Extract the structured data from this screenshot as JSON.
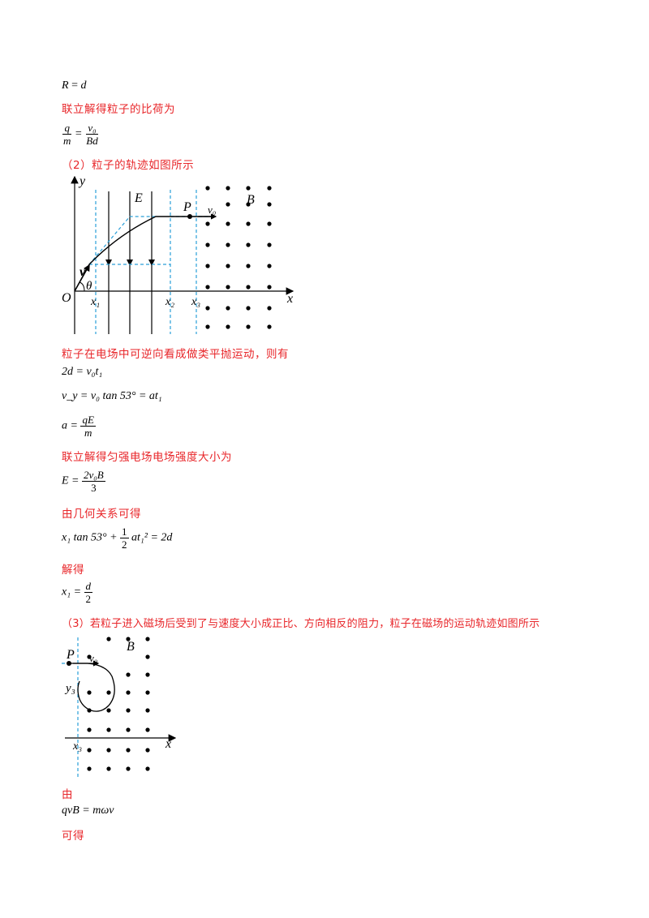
{
  "lines": {
    "eq_R": "R = d",
    "l1": "联立解得粒子的比荷为",
    "eq_qm": {
      "lhs_num": "q",
      "lhs_den": "m",
      "eq": "=",
      "rhs_num": "v₀",
      "rhs_den": "Bd"
    },
    "l2": "（2）粒子的轨迹如图所示",
    "l3": "粒子在电场中可逆向看成做类平抛运动，则有",
    "eq_2d": "2d = v₀t₁",
    "eq_vy": "v_y = v₀ tan 53° = at₁",
    "eq_a": {
      "lhs": "a =",
      "num": "qE",
      "den": "m"
    },
    "l4": "联立解得匀强电场电场强度大小为",
    "eq_E": {
      "lhs": "E =",
      "num": "2v₀B",
      "den": "3"
    },
    "l5": "由几何关系可得",
    "eq_x1": {
      "a": "x₁ tan 53° +",
      "num": "1",
      "den": "2",
      "b": "at₁² = 2d"
    },
    "l6": "解得",
    "eq_x1res": {
      "lhs": "x₁ =",
      "num": "d",
      "den": "2"
    },
    "l7": "（3）若粒子进入磁场后受到了与速度大小成正比、方向相反的阻力，粒子在磁场的运动轨迹如图所示",
    "l8": "由",
    "eq_qvB": "qvB = mωv",
    "l9": "可得"
  },
  "figure1": {
    "y_axis": "y",
    "x_axis": "x",
    "origin": "O",
    "field": "E",
    "magnetic": "B",
    "point": "P",
    "velocity": "v₀",
    "v_label": "v",
    "angle": "θ",
    "ticks": [
      "x₁",
      "x₂",
      "x₃"
    ]
  },
  "figure2": {
    "point": "P",
    "velocity": "v₀",
    "magnetic": "B",
    "y_label": "y₃",
    "x_axis": "x",
    "tick": "x₃"
  },
  "colors": {
    "text_red": "#e8262a",
    "dashed": "#2a9fd8"
  }
}
